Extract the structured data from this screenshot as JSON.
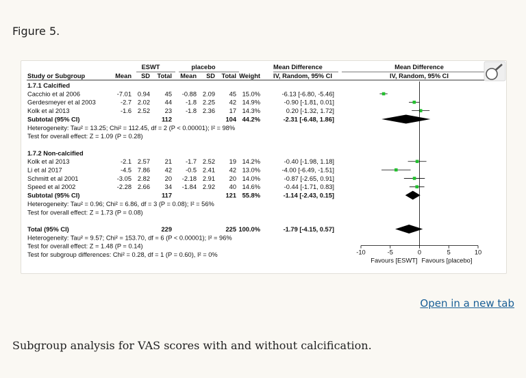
{
  "figure_title": "Figure 5.",
  "open_link": "Open in a new tab",
  "caption": "Subgroup analysis for VAS scores with and without calcification.",
  "chart_data": {
    "type": "forest",
    "headers": {
      "eswt": "ESWT",
      "placebo": "placebo",
      "md": "Mean Difference",
      "md_sub": "IV, Random, 95% CI",
      "plot_md": "Mean Difference",
      "plot_md_sub": "IV, Random, 95% CI",
      "study": "Study or Subgroup",
      "mean": "Mean",
      "sd": "SD",
      "total": "Total",
      "weight": "Weight"
    },
    "xlim": [
      -10,
      10
    ],
    "xticks": [
      "-10",
      "-5",
      "0",
      "5",
      "10"
    ],
    "favours_left": "Favours [ESWT]",
    "favours_right": "Favours [placebo]",
    "marker_color": "#22c02e",
    "rows": [
      {
        "kind": "group",
        "label": "1.7.1 Calcified"
      },
      {
        "kind": "study",
        "label": "Cacchio et al 2006",
        "e_mean": "-7.01",
        "e_sd": "0.94",
        "e_n": "45",
        "p_mean": "-0.88",
        "p_sd": "2.09",
        "p_n": "45",
        "weight": "15.0%",
        "ci": "-6.13 [-6.80, -5.46]",
        "est": -6.13,
        "lo": -6.8,
        "hi": -5.46
      },
      {
        "kind": "study",
        "label": "Gerdesmeyer et al 2003",
        "e_mean": "-2.7",
        "e_sd": "2.02",
        "e_n": "44",
        "p_mean": "-1.8",
        "p_sd": "2.25",
        "p_n": "42",
        "weight": "14.9%",
        "ci": "-0.90 [-1.81, 0.01]",
        "est": -0.9,
        "lo": -1.81,
        "hi": 0.01
      },
      {
        "kind": "study",
        "label": "Kolk et al 2013",
        "e_mean": "-1.6",
        "e_sd": "2.52",
        "e_n": "23",
        "p_mean": "-1.8",
        "p_sd": "2.36",
        "p_n": "17",
        "weight": "14.3%",
        "ci": "0.20 [-1.32, 1.72]",
        "est": 0.2,
        "lo": -1.32,
        "hi": 1.72
      },
      {
        "kind": "subtotal",
        "label": "Subtotal (95% CI)",
        "e_n": "112",
        "p_n": "104",
        "weight": "44.2%",
        "ci": "-2.31 [-6.48, 1.86]",
        "est": -2.31,
        "lo": -6.48,
        "hi": 1.86
      },
      {
        "kind": "note",
        "label": "Heterogeneity: Tau² = 13.25; Chi² = 112.45, df = 2 (P < 0.00001); I² = 98%"
      },
      {
        "kind": "note",
        "label": "Test for overall effect: Z = 1.09 (P = 0.28)"
      },
      {
        "kind": "blank"
      },
      {
        "kind": "group",
        "label": "1.7.2 Non-calcified"
      },
      {
        "kind": "study",
        "label": "Kolk et al 2013",
        "e_mean": "-2.1",
        "e_sd": "2.57",
        "e_n": "21",
        "p_mean": "-1.7",
        "p_sd": "2.52",
        "p_n": "19",
        "weight": "14.2%",
        "ci": "-0.40 [-1.98, 1.18]",
        "est": -0.4,
        "lo": -1.98,
        "hi": 1.18
      },
      {
        "kind": "study",
        "label": "Li et al 2017",
        "e_mean": "-4.5",
        "e_sd": "7.86",
        "e_n": "42",
        "p_mean": "-0.5",
        "p_sd": "2.41",
        "p_n": "42",
        "weight": "13.0%",
        "ci": "-4.00 [-6.49, -1.51]",
        "est": -4.0,
        "lo": -6.49,
        "hi": -1.51
      },
      {
        "kind": "study",
        "label": "Schmitt et al 2001",
        "e_mean": "-3.05",
        "e_sd": "2.82",
        "e_n": "20",
        "p_mean": "-2.18",
        "p_sd": "2.91",
        "p_n": "20",
        "weight": "14.0%",
        "ci": "-0.87 [-2.65, 0.91]",
        "est": -0.87,
        "lo": -2.65,
        "hi": 0.91
      },
      {
        "kind": "study",
        "label": "Speed et al 2002",
        "e_mean": "-2.28",
        "e_sd": "2.66",
        "e_n": "34",
        "p_mean": "-1.84",
        "p_sd": "2.92",
        "p_n": "40",
        "weight": "14.6%",
        "ci": "-0.44 [-1.71, 0.83]",
        "est": -0.44,
        "lo": -1.71,
        "hi": 0.83
      },
      {
        "kind": "subtotal",
        "label": "Subtotal (95% CI)",
        "e_n": "117",
        "p_n": "121",
        "weight": "55.8%",
        "ci": "-1.14 [-2.43, 0.15]",
        "est": -1.14,
        "lo": -2.43,
        "hi": 0.15
      },
      {
        "kind": "note",
        "label": "Heterogeneity: Tau² = 0.96; Chi² = 6.86, df = 3 (P = 0.08); I² = 56%"
      },
      {
        "kind": "note",
        "label": "Test for overall effect: Z = 1.73 (P = 0.08)"
      },
      {
        "kind": "blank"
      },
      {
        "kind": "subtotal",
        "label": "Total (95% CI)",
        "e_n": "229",
        "p_n": "225",
        "weight": "100.0%",
        "ci": "-1.79 [-4.15, 0.57]",
        "est": -1.79,
        "lo": -4.15,
        "hi": 0.57
      },
      {
        "kind": "note",
        "label": "Heterogeneity: Tau² = 9.57; Chi² = 153.70, df = 6 (P < 0.00001); I² = 96%"
      },
      {
        "kind": "note",
        "label": "Test for overall effect: Z = 1.48 (P = 0.14)"
      },
      {
        "kind": "note",
        "label": "Test for subgroup differences: Chi² = 0.28, df = 1 (P = 0.60), I² = 0%"
      }
    ]
  }
}
